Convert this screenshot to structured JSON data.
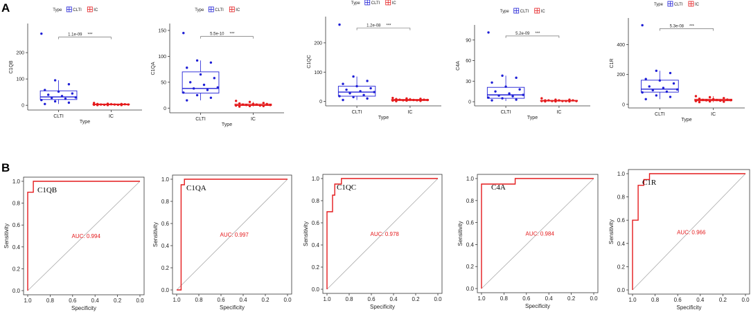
{
  "panels": {
    "a": "A",
    "b": "B"
  },
  "colors": {
    "clti": "#1f1fd6",
    "ic": "#e41a1c",
    "roc": "#e41a1c",
    "diag": "#aaaaaa",
    "axis": "#333333"
  },
  "chart_data": [
    {
      "type": "box",
      "panel": "A",
      "gene": "C1QB",
      "legend": {
        "title": "Type",
        "entries": [
          "CLTI",
          "IC"
        ]
      },
      "xlabel": "Type",
      "ylabel": "C1QB",
      "categories": [
        "CLTI",
        "IC"
      ],
      "ylim": [
        -10,
        300
      ],
      "yticks": [
        0,
        100,
        200
      ],
      "pvalue": "1.1e-09",
      "signif": "***",
      "boxes": [
        {
          "category": "CLTI",
          "q1": 22,
          "median": 32,
          "q3": 55,
          "whisker_low": 5,
          "whisker_high": 95
        },
        {
          "category": "IC",
          "q1": 2,
          "median": 3,
          "q3": 5,
          "whisker_low": 0,
          "whisker_high": 9
        }
      ],
      "points": {
        "CLTI": [
          272,
          95,
          80,
          58,
          52,
          45,
          40,
          35,
          30,
          28,
          25,
          20,
          15,
          10,
          5
        ],
        "IC": [
          9,
          6,
          5,
          5,
          4,
          4,
          3,
          3,
          3,
          2,
          2,
          2,
          1,
          1,
          1
        ]
      }
    },
    {
      "type": "box",
      "panel": "A",
      "gene": "C1QA",
      "legend": {
        "title": "Type",
        "entries": [
          "CLTI",
          "IC"
        ]
      },
      "xlabel": "Type",
      "ylabel": "C1QA",
      "categories": [
        "CLTI",
        "IC"
      ],
      "ylim": [
        -5,
        158
      ],
      "yticks": [
        0,
        50,
        100,
        150
      ],
      "pvalue": "5.5e-10",
      "signif": "***",
      "boxes": [
        {
          "category": "CLTI",
          "q1": 29,
          "median": 38,
          "q3": 70,
          "whisker_low": 15,
          "whisker_high": 92
        },
        {
          "category": "IC",
          "q1": 5,
          "median": 6,
          "q3": 8,
          "whisker_low": 3,
          "whisker_high": 12
        }
      ],
      "points": {
        "CLTI": [
          145,
          92,
          88,
          78,
          65,
          58,
          50,
          45,
          40,
          38,
          35,
          30,
          25,
          20,
          15
        ],
        "IC": [
          14,
          12,
          10,
          9,
          8,
          8,
          7,
          7,
          6,
          6,
          5,
          5,
          4,
          4,
          3
        ]
      }
    },
    {
      "type": "box",
      "panel": "A",
      "gene": "C1QC",
      "legend": {
        "title": "Type",
        "entries": [
          "CLTI",
          "IC"
        ]
      },
      "xlabel": "Type",
      "ylabel": "C1QC",
      "categories": [
        "CLTI",
        "IC"
      ],
      "ylim": [
        -8,
        280
      ],
      "yticks": [
        0,
        100,
        200
      ],
      "pvalue": "1.2e-08",
      "signif": "***",
      "boxes": [
        {
          "category": "CLTI",
          "q1": 18,
          "median": 32,
          "q3": 52,
          "whisker_low": 5,
          "whisker_high": 85
        },
        {
          "category": "IC",
          "q1": 3,
          "median": 5,
          "q3": 7,
          "whisker_low": 1,
          "whisker_high": 12
        }
      ],
      "points": {
        "CLTI": [
          262,
          85,
          70,
          60,
          52,
          45,
          40,
          35,
          32,
          28,
          22,
          18,
          15,
          10,
          5
        ],
        "IC": [
          12,
          10,
          9,
          8,
          7,
          6,
          6,
          5,
          5,
          4,
          4,
          3,
          3,
          2,
          1
        ]
      }
    },
    {
      "type": "box",
      "panel": "A",
      "gene": "C4A",
      "legend": {
        "title": "Type",
        "entries": [
          "CLTI",
          "IC"
        ]
      },
      "xlabel": "Type",
      "ylabel": "C4A",
      "categories": [
        "CLTI",
        "IC"
      ],
      "ylim": [
        -3,
        108
      ],
      "yticks": [
        0,
        30,
        60,
        90
      ],
      "pvalue": "5.2e-09",
      "signif": "***",
      "boxes": [
        {
          "category": "CLTI",
          "q1": 5,
          "median": 10,
          "q3": 21,
          "whisker_low": 1,
          "whisker_high": 38
        },
        {
          "category": "IC",
          "q1": 1,
          "median": 1.5,
          "q3": 2,
          "whisker_low": 0,
          "whisker_high": 3
        }
      ],
      "points": {
        "CLTI": [
          101,
          38,
          35,
          28,
          22,
          18,
          15,
          12,
          10,
          9,
          8,
          6,
          5,
          3,
          2
        ],
        "IC": [
          5,
          3,
          3,
          2,
          2,
          2,
          2,
          1,
          1,
          1,
          1,
          1,
          0.5,
          0.5,
          0.5
        ]
      }
    },
    {
      "type": "box",
      "panel": "A",
      "gene": "C1R",
      "legend": {
        "title": "Type",
        "entries": [
          "CLTI",
          "IC"
        ]
      },
      "xlabel": "Type",
      "ylabel": "C1R",
      "categories": [
        "CLTI",
        "IC"
      ],
      "ylim": [
        -10,
        560
      ],
      "yticks": [
        0,
        200,
        400
      ],
      "pvalue": "5.3e-08",
      "signif": "***",
      "boxes": [
        {
          "category": "CLTI",
          "q1": 82,
          "median": 102,
          "q3": 162,
          "whisker_low": 35,
          "whisker_high": 225
        },
        {
          "category": "IC",
          "q1": 24,
          "median": 29,
          "q3": 35,
          "whisker_low": 15,
          "whisker_high": 55
        }
      ],
      "points": {
        "CLTI": [
          530,
          225,
          210,
          170,
          160,
          140,
          120,
          110,
          100,
          95,
          85,
          80,
          60,
          50,
          35
        ],
        "IC": [
          55,
          48,
          42,
          38,
          35,
          32,
          30,
          29,
          28,
          27,
          25,
          22,
          20,
          18,
          15
        ]
      }
    },
    {
      "type": "line",
      "panel": "B",
      "subtype": "roc",
      "gene": "C1QB",
      "xlabel": "Specificity",
      "ylabel": "Sensitivity",
      "xticks": [
        "1.0",
        "0.8",
        "0.6",
        "0.4",
        "0.2",
        "0.0"
      ],
      "yticks": [
        "0.0",
        "0.2",
        "0.4",
        "0.6",
        "0.8",
        "1.0"
      ],
      "auc_label": "AUC: 0.994",
      "roc": [
        [
          1.0,
          0.0
        ],
        [
          1.0,
          0.9
        ],
        [
          0.95,
          0.9
        ],
        [
          0.95,
          1.0
        ],
        [
          0.0,
          1.0
        ]
      ]
    },
    {
      "type": "line",
      "panel": "B",
      "subtype": "roc",
      "gene": "C1QA",
      "xlabel": "Specificity",
      "ylabel": "Sensitivity",
      "xticks": [
        "1.0",
        "0.8",
        "0.6",
        "0.4",
        "0.2",
        "0.0"
      ],
      "yticks": [
        "0.0",
        "0.2",
        "0.4",
        "0.6",
        "0.8",
        "1.0"
      ],
      "auc_label": "AUC: 0.997",
      "roc": [
        [
          1.0,
          0.0
        ],
        [
          0.96,
          0.0
        ],
        [
          0.96,
          0.95
        ],
        [
          0.93,
          0.95
        ],
        [
          0.93,
          1.0
        ],
        [
          0.0,
          1.0
        ]
      ]
    },
    {
      "type": "line",
      "panel": "B",
      "subtype": "roc",
      "gene": "C1QC",
      "xlabel": "Specificity",
      "ylabel": "Sensitivity",
      "xticks": [
        "1.0",
        "0.8",
        "0.6",
        "0.4",
        "0.2",
        "0.0"
      ],
      "yticks": [
        "0.0",
        "0.2",
        "0.4",
        "0.6",
        "0.8",
        "1.0"
      ],
      "auc_label": "AUC: 0.978",
      "roc": [
        [
          1.0,
          0.0
        ],
        [
          1.0,
          0.7
        ],
        [
          0.95,
          0.7
        ],
        [
          0.95,
          0.85
        ],
        [
          0.93,
          0.85
        ],
        [
          0.93,
          0.95
        ],
        [
          0.87,
          0.95
        ],
        [
          0.87,
          1.0
        ],
        [
          0.0,
          1.0
        ]
      ]
    },
    {
      "type": "line",
      "panel": "B",
      "subtype": "roc",
      "gene": "C4A",
      "xlabel": "Specificity",
      "ylabel": "Sensitivity",
      "xticks": [
        "1.0",
        "0.8",
        "0.6",
        "0.4",
        "0.2",
        "0.0"
      ],
      "yticks": [
        "0.0",
        "0.2",
        "0.4",
        "0.6",
        "0.8",
        "1.0"
      ],
      "auc_label": "AUC: 0.984",
      "roc": [
        [
          1.0,
          0.0
        ],
        [
          1.0,
          0.95
        ],
        [
          0.7,
          0.95
        ],
        [
          0.7,
          1.0
        ],
        [
          0.0,
          1.0
        ]
      ]
    },
    {
      "type": "line",
      "panel": "B",
      "subtype": "roc",
      "gene": "C1R",
      "xlabel": "Specificity",
      "ylabel": "Sensitivity",
      "xticks": [
        "1.0",
        "0.8",
        "0.6",
        "0.4",
        "0.2",
        "0.0"
      ],
      "yticks": [
        "0.0",
        "0.2",
        "0.4",
        "0.6",
        "0.8",
        "1.0"
      ],
      "auc_label": "AUC: 0.966",
      "roc": [
        [
          1.0,
          0.0
        ],
        [
          1.0,
          0.6
        ],
        [
          0.95,
          0.6
        ],
        [
          0.95,
          0.9
        ],
        [
          0.9,
          0.9
        ],
        [
          0.9,
          0.95
        ],
        [
          0.85,
          0.95
        ],
        [
          0.85,
          1.0
        ],
        [
          0.0,
          1.0
        ]
      ]
    }
  ]
}
